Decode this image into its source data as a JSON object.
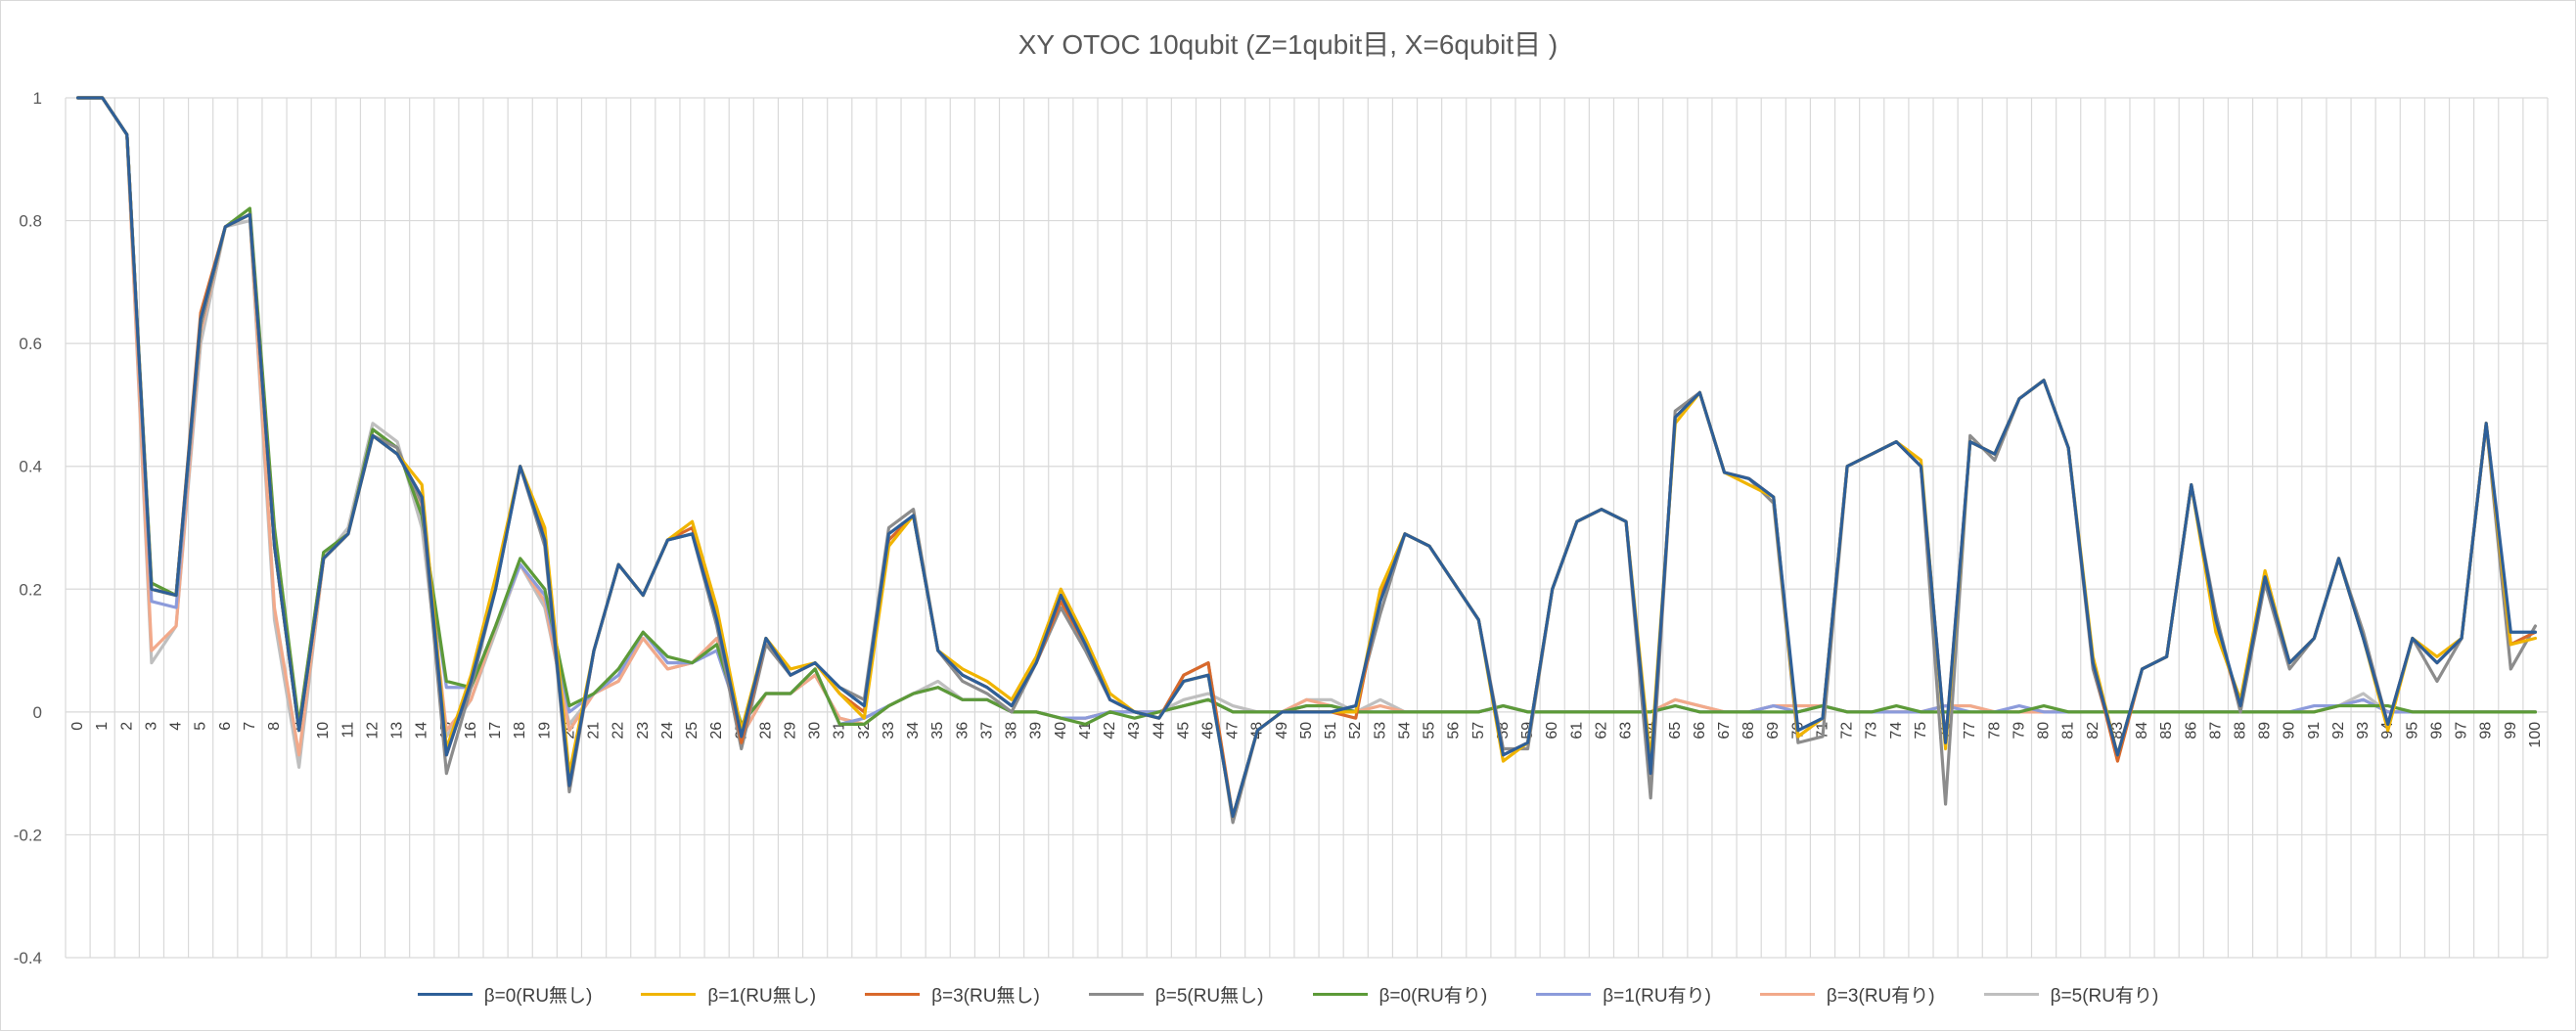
{
  "chart_data": {
    "type": "line",
    "title": "XY OTOC 10qubit (Z=1qubit目, X=6qubit目 )",
    "xlabel": "",
    "ylabel": "",
    "ylim": [
      -0.4,
      1
    ],
    "yticks": [
      -0.4,
      -0.2,
      0,
      0.2,
      0.4,
      0.6,
      0.8,
      1
    ],
    "ytick_labels": [
      "-0.4",
      "-0.2",
      "0",
      "0.2",
      "0.4",
      "0.6",
      "0.8",
      "1"
    ],
    "grid": true,
    "legend_position": "bottom",
    "x": [
      0,
      1,
      2,
      3,
      4,
      5,
      6,
      7,
      8,
      9,
      10,
      11,
      12,
      13,
      14,
      15,
      16,
      17,
      18,
      19,
      20,
      21,
      22,
      23,
      24,
      25,
      26,
      27,
      28,
      29,
      30,
      31,
      32,
      33,
      34,
      35,
      36,
      37,
      38,
      39,
      40,
      41,
      42,
      43,
      44,
      45,
      46,
      47,
      48,
      49,
      50,
      51,
      52,
      53,
      54,
      55,
      56,
      57,
      58,
      59,
      60,
      61,
      62,
      63,
      64,
      65,
      66,
      67,
      68,
      69,
      70,
      71,
      72,
      73,
      74,
      75,
      76,
      77,
      78,
      79,
      80,
      81,
      82,
      83,
      84,
      85,
      86,
      87,
      88,
      89,
      90,
      91,
      92,
      93,
      94,
      95,
      96,
      97,
      98,
      99,
      100
    ],
    "series": [
      {
        "name": "β=0(RU無し)",
        "color": "#2e5f98",
        "values": [
          1,
          1,
          0.94,
          0.2,
          0.19,
          0.64,
          0.79,
          0.81,
          0.27,
          -0.03,
          0.25,
          0.29,
          0.45,
          0.42,
          0.35,
          -0.07,
          0.05,
          0.2,
          0.4,
          0.28,
          -0.12,
          0.1,
          0.24,
          0.19,
          0.28,
          0.29,
          0.15,
          -0.04,
          0.12,
          0.06,
          0.08,
          0.04,
          0.01,
          0.29,
          0.32,
          0.1,
          0.06,
          0.04,
          0.01,
          0.08,
          0.19,
          0.11,
          0.02,
          0.0,
          -0.01,
          0.05,
          0.06,
          -0.17,
          -0.03,
          0.0,
          0.0,
          0.0,
          0.01,
          0.18,
          0.29,
          0.27,
          0.21,
          0.15,
          -0.07,
          -0.05,
          0.2,
          0.31,
          0.33,
          0.31,
          -0.1,
          0.48,
          0.52,
          0.39,
          0.38,
          0.35,
          -0.03,
          -0.01,
          0.4,
          0.42,
          0.44,
          0.4,
          -0.05,
          0.44,
          0.42,
          0.51,
          0.54,
          0.43,
          0.08,
          -0.07,
          0.07,
          0.09,
          0.37,
          0.15,
          0.01,
          0.22,
          0.08,
          0.12,
          0.25,
          0.12,
          -0.02,
          0.12,
          0.08,
          0.12,
          0.47,
          0.13,
          0.13
        ]
      },
      {
        "name": "β=1(RU無し)",
        "color": "#f0b400",
        "values": [
          1,
          1,
          0.94,
          0.2,
          0.19,
          0.64,
          0.79,
          0.81,
          0.27,
          -0.03,
          0.25,
          0.29,
          0.45,
          0.42,
          0.37,
          -0.06,
          0.06,
          0.22,
          0.4,
          0.3,
          -0.1,
          0.1,
          0.24,
          0.19,
          0.28,
          0.31,
          0.17,
          -0.03,
          0.12,
          0.07,
          0.08,
          0.03,
          -0.01,
          0.27,
          0.32,
          0.1,
          0.07,
          0.05,
          0.02,
          0.09,
          0.2,
          0.12,
          0.03,
          0.0,
          -0.01,
          0.05,
          0.06,
          -0.17,
          -0.03,
          0.0,
          0.0,
          0.0,
          0.0,
          0.2,
          0.29,
          0.27,
          0.21,
          0.15,
          -0.08,
          -0.05,
          0.2,
          0.31,
          0.33,
          0.31,
          -0.08,
          0.47,
          0.52,
          0.39,
          0.37,
          0.35,
          -0.04,
          -0.01,
          0.4,
          0.42,
          0.44,
          0.41,
          -0.06,
          0.44,
          0.42,
          0.51,
          0.54,
          0.43,
          0.09,
          -0.07,
          0.07,
          0.09,
          0.37,
          0.13,
          0.02,
          0.23,
          0.08,
          0.12,
          0.25,
          0.12,
          -0.03,
          0.12,
          0.09,
          0.12,
          0.47,
          0.11,
          0.12
        ]
      },
      {
        "name": "β=3(RU無し)",
        "color": "#d9692b",
        "values": [
          1,
          1,
          0.94,
          0.2,
          0.19,
          0.65,
          0.79,
          0.81,
          0.27,
          -0.03,
          0.25,
          0.29,
          0.45,
          0.42,
          0.35,
          -0.07,
          0.05,
          0.21,
          0.4,
          0.29,
          -0.12,
          0.1,
          0.24,
          0.19,
          0.28,
          0.3,
          0.16,
          -0.05,
          0.12,
          0.06,
          0.08,
          0.03,
          0.0,
          0.28,
          0.32,
          0.1,
          0.06,
          0.04,
          0.01,
          0.08,
          0.18,
          0.11,
          0.02,
          0.0,
          -0.01,
          0.06,
          0.08,
          -0.17,
          -0.03,
          0.0,
          0.0,
          0.0,
          -0.01,
          0.19,
          0.29,
          0.27,
          0.21,
          0.15,
          -0.07,
          -0.05,
          0.2,
          0.31,
          0.33,
          0.31,
          -0.1,
          0.48,
          0.52,
          0.39,
          0.38,
          0.35,
          -0.04,
          -0.01,
          0.4,
          0.42,
          0.44,
          0.4,
          -0.05,
          0.44,
          0.42,
          0.51,
          0.54,
          0.43,
          0.08,
          -0.08,
          0.07,
          0.09,
          0.37,
          0.14,
          0.01,
          0.22,
          0.08,
          0.12,
          0.25,
          0.12,
          -0.02,
          0.12,
          0.08,
          0.12,
          0.47,
          0.11,
          0.13
        ]
      },
      {
        "name": "β=5(RU無し)",
        "color": "#8c8c8c",
        "values": [
          1,
          1,
          0.94,
          0.2,
          0.19,
          0.63,
          0.79,
          0.81,
          0.27,
          -0.03,
          0.25,
          0.29,
          0.45,
          0.43,
          0.34,
          -0.1,
          0.04,
          0.2,
          0.4,
          0.27,
          -0.13,
          0.1,
          0.24,
          0.19,
          0.28,
          0.29,
          0.14,
          -0.06,
          0.11,
          0.06,
          0.08,
          0.04,
          0.02,
          0.3,
          0.33,
          0.1,
          0.05,
          0.03,
          0.0,
          0.08,
          0.17,
          0.1,
          0.02,
          0.0,
          -0.01,
          0.06,
          0.08,
          -0.18,
          -0.03,
          0.0,
          0.0,
          0.0,
          0.01,
          0.16,
          0.29,
          0.27,
          0.21,
          0.15,
          -0.06,
          -0.06,
          0.2,
          0.31,
          0.33,
          0.31,
          -0.14,
          0.49,
          0.52,
          0.39,
          0.38,
          0.34,
          -0.05,
          -0.04,
          0.4,
          0.42,
          0.44,
          0.4,
          -0.15,
          0.45,
          0.41,
          0.51,
          0.54,
          0.43,
          0.07,
          -0.07,
          0.07,
          0.09,
          0.37,
          0.16,
          0.0,
          0.21,
          0.07,
          0.12,
          0.25,
          0.13,
          -0.02,
          0.12,
          0.05,
          0.12,
          0.47,
          0.07,
          0.14
        ]
      },
      {
        "name": "β=0(RU有り)",
        "color": "#5c9a38",
        "values": [
          1,
          1,
          0.94,
          0.21,
          0.19,
          0.63,
          0.79,
          0.82,
          0.3,
          -0.02,
          0.26,
          0.29,
          0.46,
          0.43,
          0.32,
          0.05,
          0.04,
          0.14,
          0.25,
          0.2,
          0.01,
          0.03,
          0.07,
          0.13,
          0.09,
          0.08,
          0.11,
          -0.02,
          0.03,
          0.03,
          0.07,
          -0.02,
          -0.02,
          0.01,
          0.03,
          0.04,
          0.02,
          0.02,
          0.0,
          0.0,
          -0.01,
          -0.02,
          0.0,
          -0.01,
          0.0,
          0.01,
          0.02,
          0.0,
          0.0,
          0.0,
          0.01,
          0.01,
          0.0,
          0.0,
          0.0,
          0.0,
          0.0,
          0.0,
          0.01,
          0.0,
          0.0,
          0.0,
          0.0,
          0.0,
          0.0,
          0.01,
          0.0,
          0.0,
          0.0,
          0.0,
          0.0,
          0.01,
          0.0,
          0.0,
          0.01,
          0.0,
          0.0,
          0.0,
          0.0,
          0.0,
          0.01,
          0.0,
          0.0,
          0.0,
          0.0,
          0.0,
          0.0,
          0.0,
          0.0,
          0.0,
          0.0,
          0.0,
          0.01,
          0.01,
          0.01,
          0.0,
          0.0,
          0.0,
          0.0,
          0.0,
          0.0
        ]
      },
      {
        "name": "β=1(RU有り)",
        "color": "#8c9bdb",
        "values": [
          1,
          1,
          0.94,
          0.18,
          0.17,
          0.63,
          0.79,
          0.81,
          0.29,
          -0.03,
          0.26,
          0.29,
          0.46,
          0.43,
          0.32,
          0.04,
          0.04,
          0.14,
          0.24,
          0.19,
          0.0,
          0.03,
          0.06,
          0.13,
          0.08,
          0.08,
          0.1,
          -0.02,
          0.03,
          0.03,
          0.07,
          -0.02,
          -0.01,
          0.01,
          0.03,
          0.04,
          0.02,
          0.02,
          0.0,
          0.0,
          -0.01,
          -0.01,
          0.0,
          0.0,
          0.0,
          0.01,
          0.02,
          0.0,
          0.0,
          0.0,
          0.01,
          0.01,
          0.0,
          0.0,
          0.0,
          0.0,
          0.0,
          0.0,
          0.01,
          0.0,
          0.0,
          0.0,
          0.0,
          0.0,
          0.0,
          0.01,
          0.0,
          0.0,
          0.0,
          0.01,
          0.0,
          0.01,
          0.0,
          0.0,
          0.0,
          0.0,
          0.01,
          0.0,
          0.0,
          0.01,
          0.0,
          0.0,
          0.0,
          0.0,
          0.0,
          0.0,
          0.0,
          0.0,
          0.0,
          0.0,
          0.0,
          0.01,
          0.01,
          0.02,
          0.0,
          0.0,
          0.0,
          0.0,
          0.0,
          0.0,
          0.0
        ]
      },
      {
        "name": "β=3(RU有り)",
        "color": "#f2a98a",
        "values": [
          1,
          1,
          0.94,
          0.1,
          0.14,
          0.62,
          0.79,
          0.81,
          0.17,
          -0.07,
          0.25,
          0.29,
          0.46,
          0.43,
          0.33,
          -0.03,
          0.02,
          0.14,
          0.24,
          0.18,
          -0.03,
          0.03,
          0.05,
          0.12,
          0.07,
          0.08,
          0.12,
          -0.04,
          0.03,
          0.03,
          0.06,
          -0.01,
          -0.02,
          0.01,
          0.03,
          0.04,
          0.02,
          0.02,
          0.0,
          0.0,
          -0.01,
          -0.01,
          0.0,
          0.0,
          0.0,
          0.01,
          0.02,
          0.0,
          0.0,
          0.0,
          0.02,
          0.01,
          0.0,
          0.01,
          0.0,
          0.0,
          0.0,
          0.0,
          0.01,
          0.0,
          0.0,
          0.0,
          0.0,
          0.0,
          0.0,
          0.02,
          0.01,
          0.0,
          0.0,
          0.01,
          0.01,
          0.01,
          0.0,
          0.0,
          0.0,
          0.0,
          0.01,
          0.01,
          0.0,
          0.0,
          0.0,
          0.0,
          0.0,
          0.0,
          0.0,
          0.0,
          0.0,
          0.0,
          0.0,
          0.0,
          0.0,
          0.0,
          0.01,
          0.02,
          0.0,
          0.0,
          0.0,
          0.0,
          0.0,
          0.0,
          0.0
        ]
      },
      {
        "name": "β=5(RU有り)",
        "color": "#bfbfbf",
        "values": [
          1,
          1,
          0.94,
          0.08,
          0.14,
          0.6,
          0.79,
          0.8,
          0.15,
          -0.09,
          0.25,
          0.3,
          0.47,
          0.44,
          0.3,
          -0.04,
          0.02,
          0.13,
          0.24,
          0.17,
          -0.02,
          0.03,
          0.05,
          0.12,
          0.07,
          0.08,
          0.12,
          -0.04,
          0.03,
          0.03,
          0.06,
          -0.01,
          -0.02,
          0.01,
          0.03,
          0.05,
          0.02,
          0.02,
          0.0,
          0.0,
          -0.01,
          -0.01,
          0.0,
          0.0,
          0.0,
          0.02,
          0.03,
          0.01,
          0.0,
          0.0,
          0.02,
          0.02,
          0.0,
          0.02,
          0.0,
          0.0,
          0.0,
          0.0,
          0.01,
          0.0,
          0.0,
          0.0,
          0.0,
          0.0,
          0.0,
          0.02,
          0.01,
          0.0,
          0.0,
          0.01,
          0.01,
          0.01,
          0.0,
          0.0,
          0.0,
          0.0,
          0.01,
          0.01,
          0.0,
          0.0,
          0.0,
          0.0,
          0.0,
          0.0,
          0.0,
          0.0,
          0.0,
          0.0,
          0.0,
          0.0,
          0.0,
          0.0,
          0.01,
          0.03,
          0.0,
          0.0,
          0.0,
          0.0,
          0.0,
          0.0,
          0.0
        ]
      }
    ]
  }
}
